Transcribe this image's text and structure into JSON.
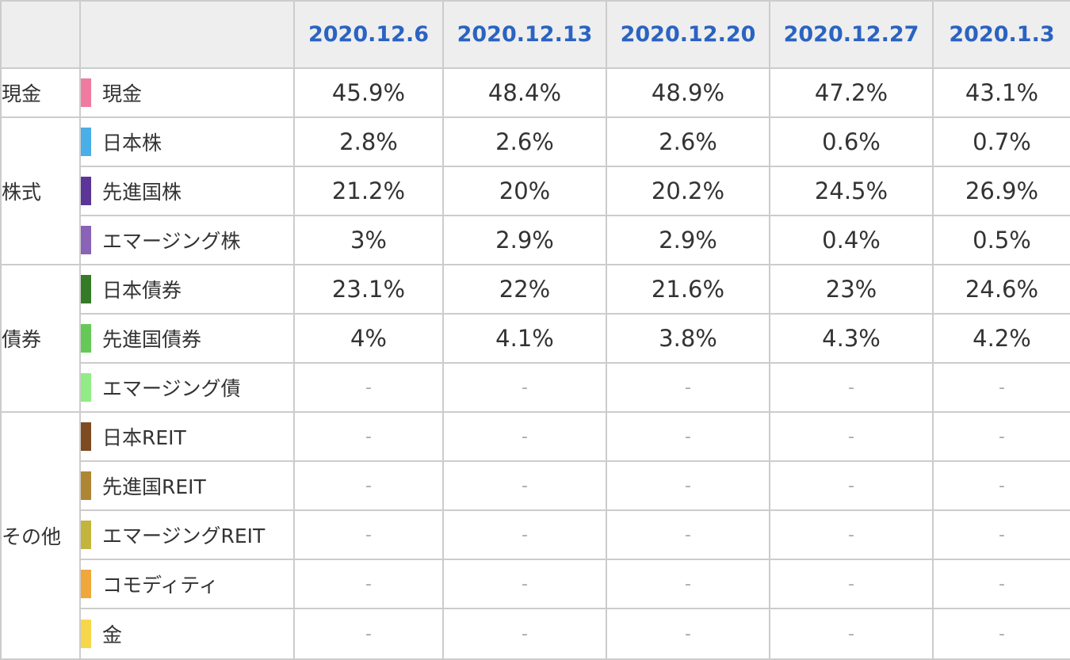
{
  "chart_data": {
    "type": "table",
    "columns": [
      "2020.12.6",
      "2020.12.13",
      "2020.12.20",
      "2020.12.27",
      "2020.1.3"
    ],
    "groups": [
      {
        "label": "現金",
        "rows": [
          {
            "label": "現金",
            "color": "#f07aa0",
            "values": [
              "45.9%",
              "48.4%",
              "48.9%",
              "47.2%",
              "43.1%"
            ]
          }
        ]
      },
      {
        "label": "株式",
        "rows": [
          {
            "label": "日本株",
            "color": "#4aaee8",
            "values": [
              "2.8%",
              "2.6%",
              "2.6%",
              "0.6%",
              "0.7%"
            ]
          },
          {
            "label": "先進国株",
            "color": "#5b3597",
            "values": [
              "21.2%",
              "20%",
              "20.2%",
              "24.5%",
              "26.9%"
            ]
          },
          {
            "label": "エマージング株",
            "color": "#8a62b8",
            "values": [
              "3%",
              "2.9%",
              "2.9%",
              "0.4%",
              "0.5%"
            ]
          }
        ]
      },
      {
        "label": "債券",
        "rows": [
          {
            "label": "日本債券",
            "color": "#357a27",
            "values": [
              "23.1%",
              "22%",
              "21.6%",
              "23%",
              "24.6%"
            ]
          },
          {
            "label": "先進国債券",
            "color": "#66c957",
            "values": [
              "4%",
              "4.1%",
              "3.8%",
              "4.3%",
              "4.2%"
            ]
          },
          {
            "label": "エマージング債",
            "color": "#92ec86",
            "values": [
              "-",
              "-",
              "-",
              "-",
              "-"
            ]
          }
        ]
      },
      {
        "label": "その他",
        "rows": [
          {
            "label": "日本REIT",
            "color": "#7d4a22",
            "values": [
              "-",
              "-",
              "-",
              "-",
              "-"
            ]
          },
          {
            "label": "先進国REIT",
            "color": "#ad8533",
            "values": [
              "-",
              "-",
              "-",
              "-",
              "-"
            ]
          },
          {
            "label": "エマージングREIT",
            "color": "#c3b43d",
            "values": [
              "-",
              "-",
              "-",
              "-",
              "-"
            ]
          },
          {
            "label": "コモディティ",
            "color": "#f0a73c",
            "values": [
              "-",
              "-",
              "-",
              "-",
              "-"
            ]
          },
          {
            "label": "金",
            "color": "#f7d64a",
            "values": [
              "-",
              "-",
              "-",
              "-",
              "-"
            ]
          }
        ]
      }
    ]
  }
}
